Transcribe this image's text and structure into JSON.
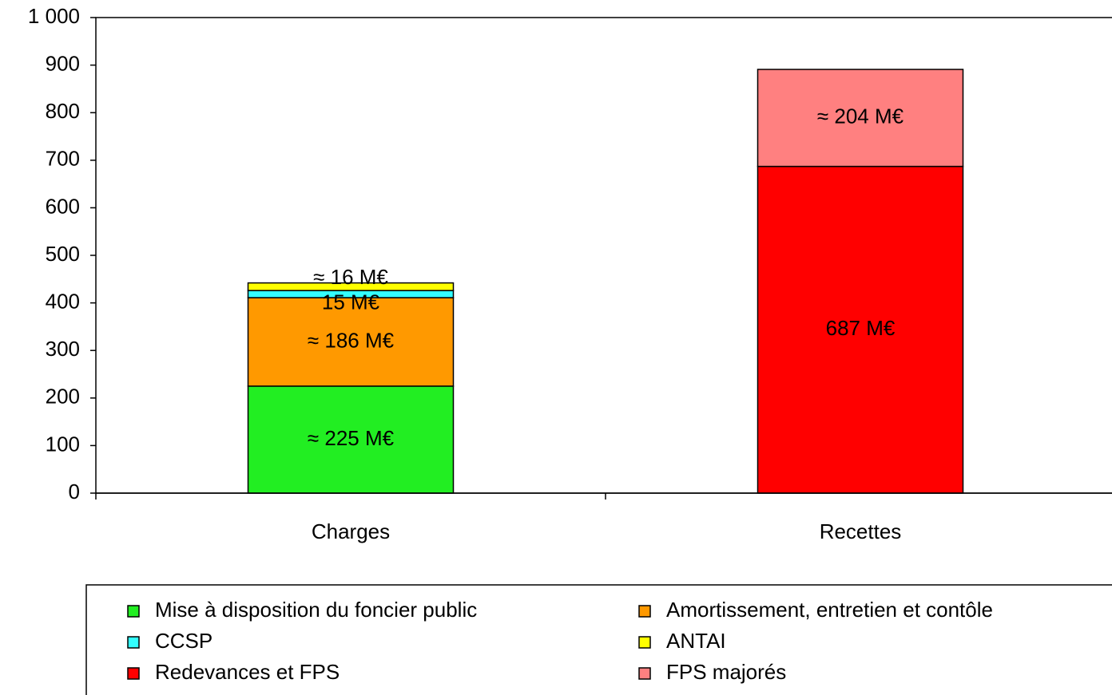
{
  "chart_data": {
    "type": "stacked_bar",
    "categories": [
      "Charges",
      "Recettes"
    ],
    "series": [
      {
        "name": "Mise à disposition du foncier public",
        "color": "#22ee22",
        "values": [
          225,
          null
        ],
        "value_labels": [
          "≈ 225 M€",
          null
        ]
      },
      {
        "name": "Amortissement, entretien et contôle",
        "color": "#ff9900",
        "values": [
          186,
          null
        ],
        "value_labels": [
          "≈ 186 M€",
          null
        ]
      },
      {
        "name": "CCSP",
        "color": "#33ffff",
        "values": [
          15,
          null
        ],
        "value_labels": [
          "15 M€",
          null
        ]
      },
      {
        "name": "ANTAI",
        "color": "#ffff00",
        "values": [
          16,
          null
        ],
        "value_labels": [
          "≈ 16 M€",
          null
        ]
      },
      {
        "name": "Redevances et FPS",
        "color": "#ff0000",
        "values": [
          null,
          687
        ],
        "value_labels": [
          null,
          "687 M€"
        ]
      },
      {
        "name": "FPS majorés",
        "color": "#ff8080",
        "values": [
          null,
          204
        ],
        "value_labels": [
          null,
          "≈ 204 M€"
        ]
      }
    ],
    "ylim": [
      0,
      1000
    ],
    "yticks": [
      0,
      100,
      200,
      300,
      400,
      500,
      600,
      700,
      800,
      900,
      {
        "value": 1000,
        "label": "1 000"
      }
    ],
    "legend": "bottom"
  }
}
